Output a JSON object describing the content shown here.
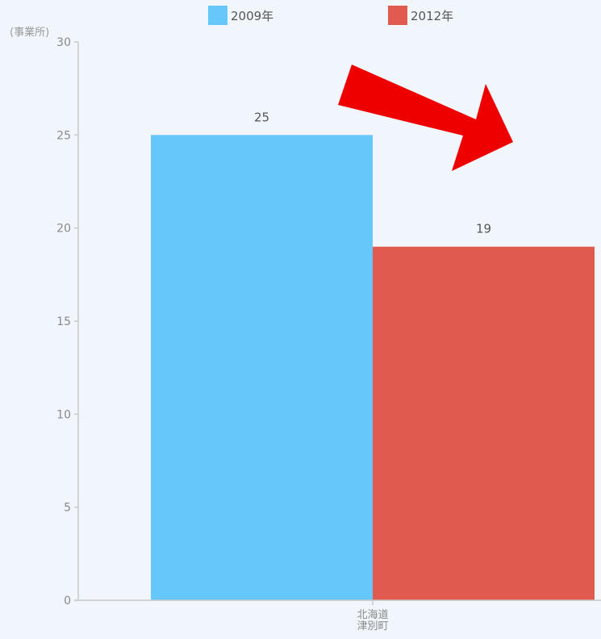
{
  "colors": {
    "background": "#f0f6fb",
    "axis": "#c8c8c8",
    "arrow": "#ee0000"
  },
  "decorations": {
    "arrow": {
      "color": "#ee0000",
      "direction": "down-right"
    }
  },
  "chart_data": {
    "type": "bar",
    "title": "",
    "xlabel": "",
    "ylabel": "(事業所)",
    "ylim": [
      0,
      30
    ],
    "yticks": [
      0,
      5,
      10,
      15,
      20,
      25,
      30
    ],
    "grid": false,
    "legend_position": "top-center",
    "categories": [
      [
        "北海道",
        "津別町"
      ]
    ],
    "series": [
      {
        "name": "2009年",
        "color": "#66c7fa",
        "values": [
          25
        ]
      },
      {
        "name": "2012年",
        "color": "#e05a50",
        "values": [
          19
        ]
      }
    ]
  }
}
